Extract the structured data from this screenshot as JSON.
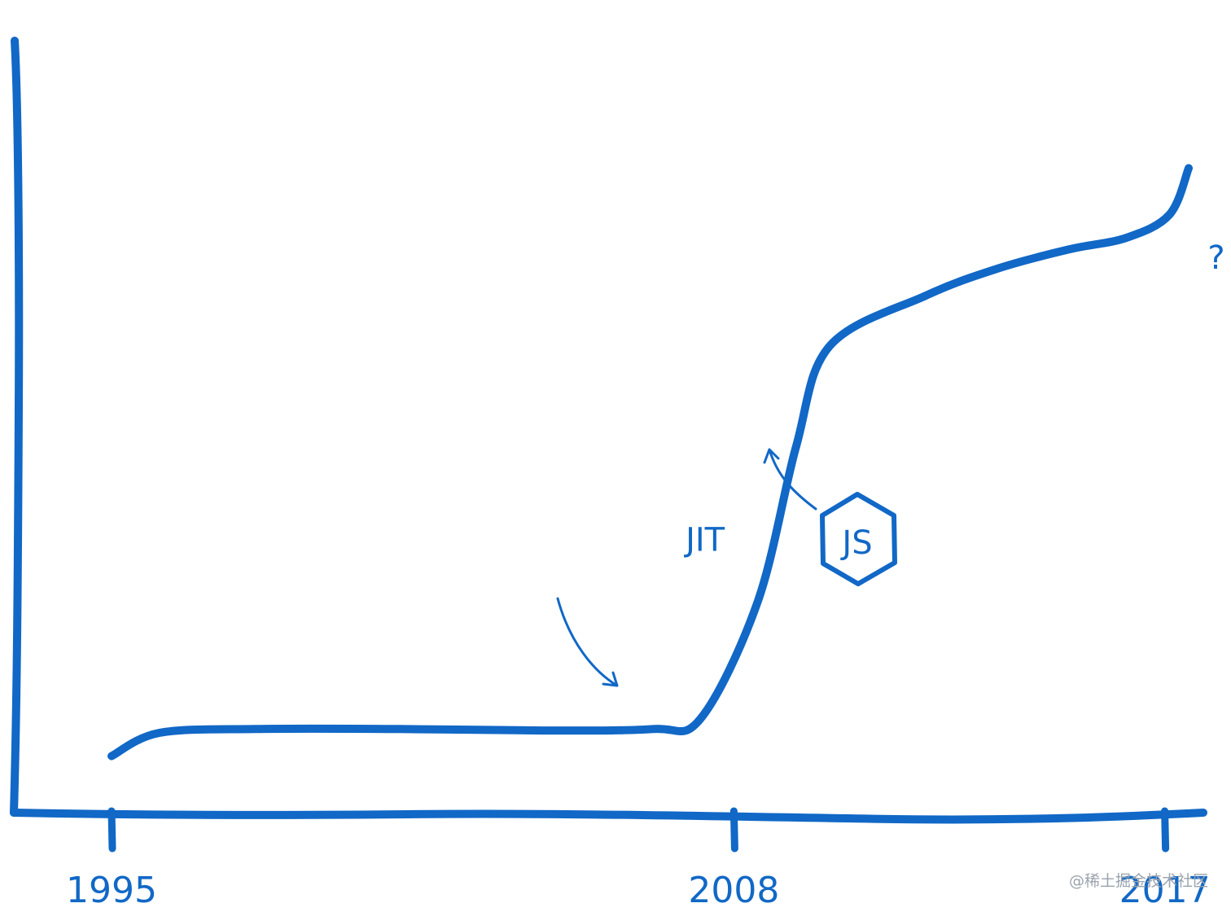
{
  "colors": {
    "ink": "#1168c6",
    "watermark": "#9aa3ad"
  },
  "chart_data": {
    "type": "line",
    "title": "",
    "xlabel": "",
    "ylabel": "",
    "grid": false,
    "xlim": [
      1995,
      2017.5
    ],
    "ylim": [
      0,
      100
    ],
    "x_ticks": [
      1995,
      2008,
      2017
    ],
    "x_tick_labels": [
      "1995",
      "2008",
      "2017"
    ],
    "series": [
      {
        "points": [
          [
            1995,
            7
          ],
          [
            1996,
            10
          ],
          [
            1998,
            10.5
          ],
          [
            2001,
            10.5
          ],
          [
            2004,
            10.3
          ],
          [
            2006.3,
            10.5
          ],
          [
            2007.3,
            11.8
          ],
          [
            2008.5,
            27
          ],
          [
            2009.3,
            47
          ],
          [
            2010.0,
            60
          ],
          [
            2012.0,
            66.5
          ],
          [
            2013.5,
            70
          ],
          [
            2015.0,
            72.5
          ],
          [
            2016.2,
            74
          ],
          [
            2017.1,
            77
          ],
          [
            2017.5,
            83
          ]
        ]
      }
    ],
    "annotations": [
      {
        "text": "JIT",
        "x": 2007.4,
        "y": 13
      },
      {
        "text": "JS",
        "x": 2010.8,
        "y": 49
      },
      {
        "text": "?",
        "x": 2017.6,
        "y": 78
      }
    ]
  },
  "watermark": "@稀土掘金技术社区"
}
